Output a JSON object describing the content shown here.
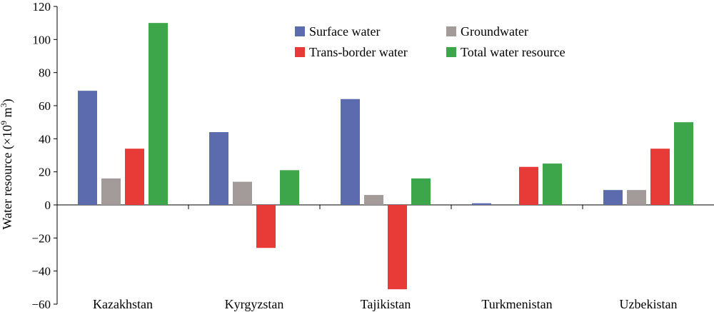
{
  "chart_data": {
    "type": "bar",
    "categories": [
      "Kazakhstan",
      "Kyrgyzstan",
      "Tajikistan",
      "Turkmenistan",
      "Uzbekistan"
    ],
    "series": [
      {
        "name": "Surface water",
        "color": "#5b6bad",
        "values": [
          69,
          44,
          64,
          1,
          9
        ]
      },
      {
        "name": "Groundwater",
        "color": "#a39a9a",
        "values": [
          16,
          14,
          6,
          0,
          9
        ]
      },
      {
        "name": "Trans-border water",
        "color": "#e83a36",
        "values": [
          34,
          -26,
          -51,
          23,
          34
        ]
      },
      {
        "name": "Total water resource",
        "color": "#3ea64a",
        "values": [
          110,
          21,
          16,
          25,
          50
        ]
      }
    ],
    "ylabel_main": "Water resource (×10",
    "ylabel_sup": "9",
    "ylabel_unit": " m",
    "ylabel_unit_sup": "3",
    "ylabel_close": ")",
    "ylim": [
      -60,
      120
    ],
    "yticks": [
      120,
      100,
      80,
      60,
      40,
      20,
      0,
      -20,
      -40,
      -60
    ],
    "ytick_labels": [
      "120",
      "100",
      "80",
      "60",
      "40",
      "20",
      "0",
      "−20",
      "−40",
      "−60"
    ],
    "legend": {
      "placement": "top-center",
      "columns": 2
    },
    "grid": false
  }
}
